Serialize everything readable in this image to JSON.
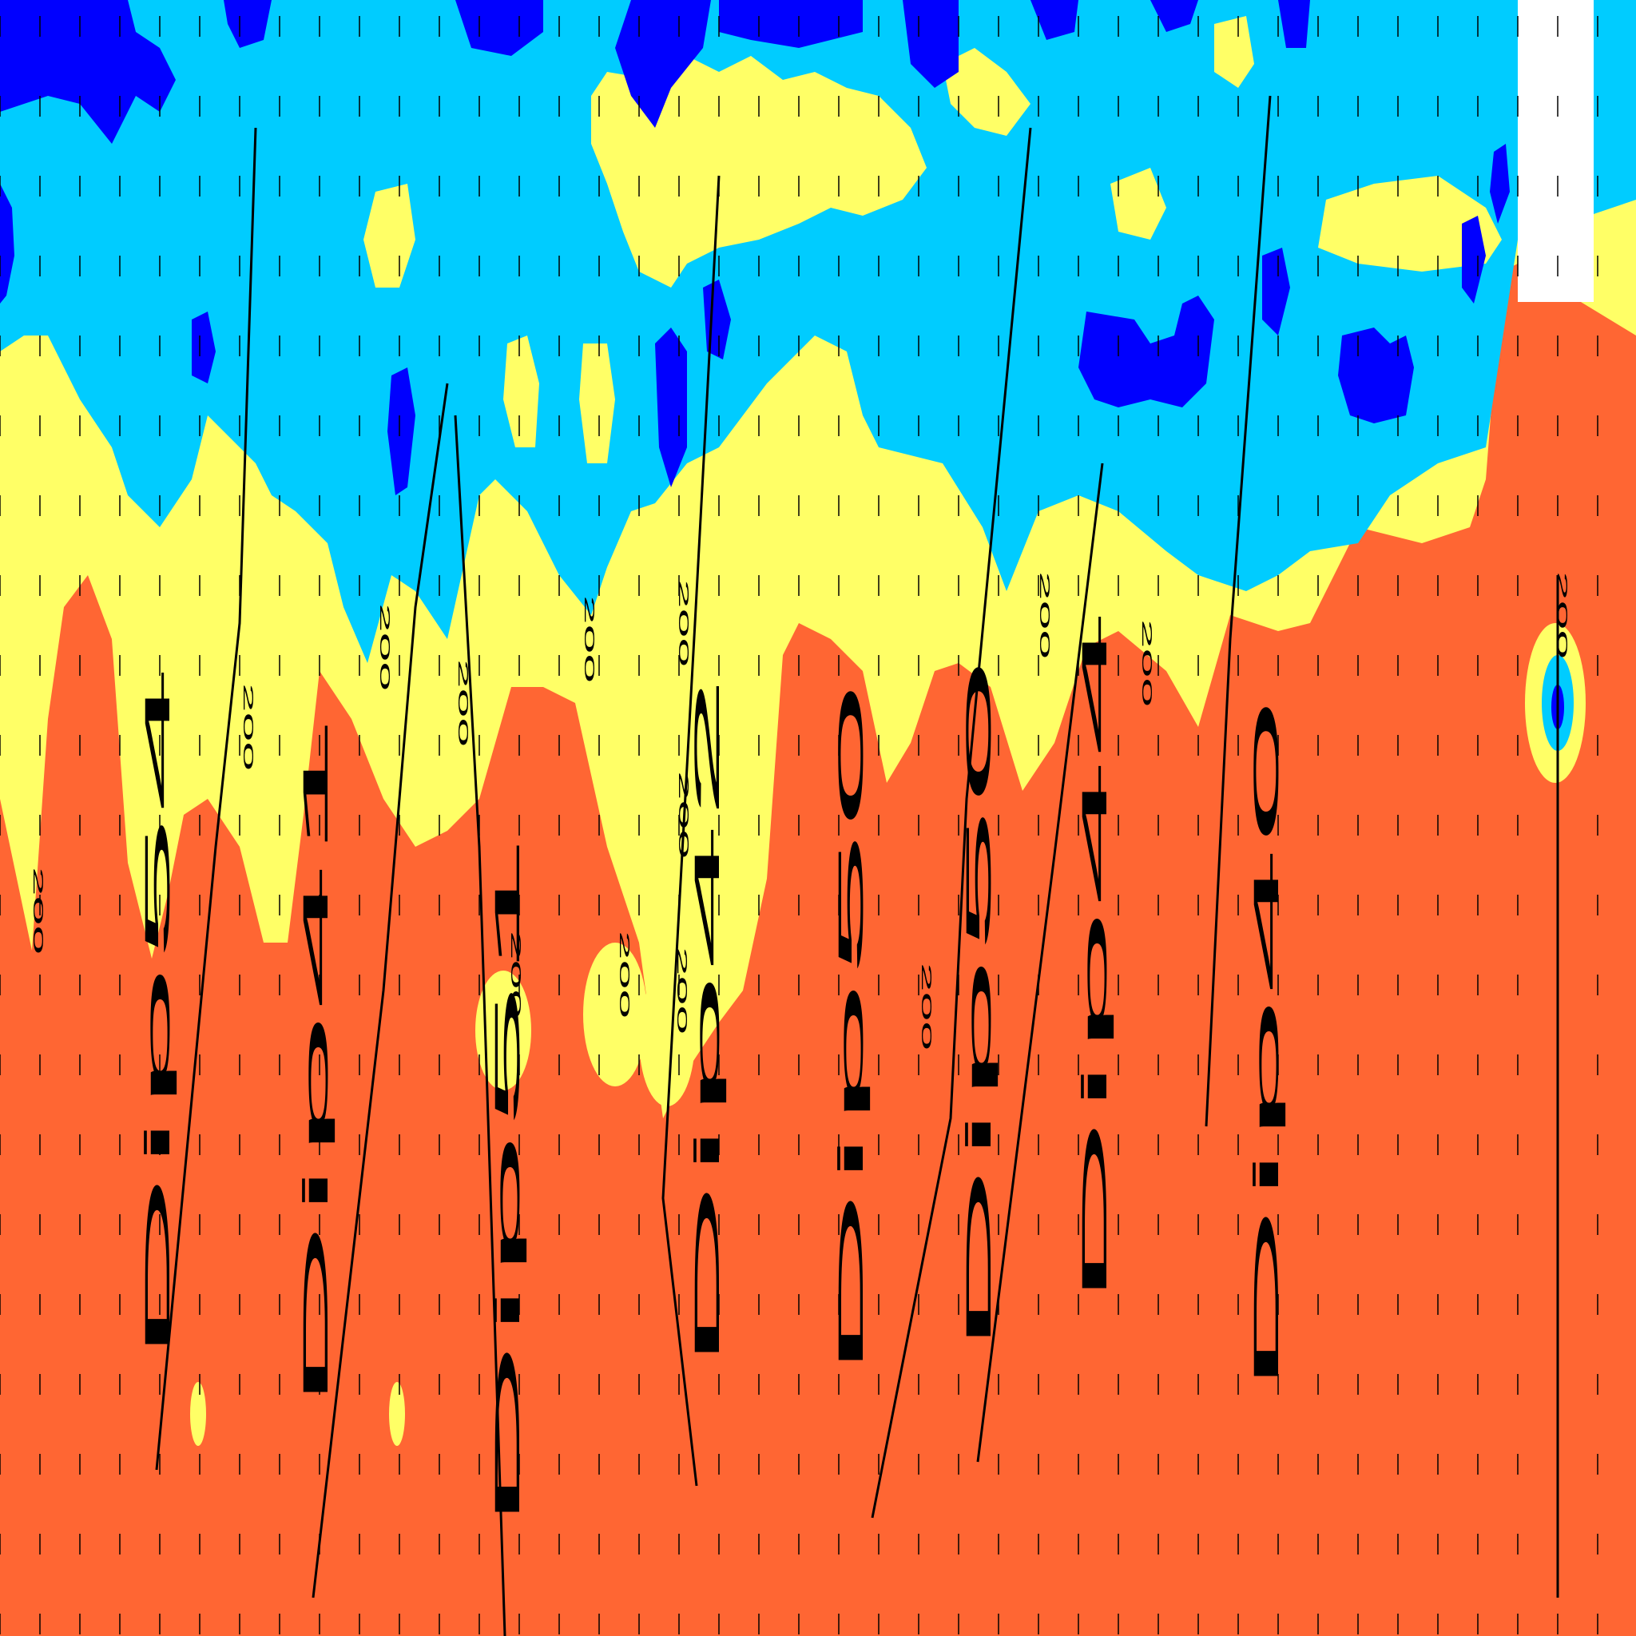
{
  "colors": {
    "deep_blue": "#0000ff",
    "light_blue": "#00ccff",
    "yellow": "#ffff66",
    "orange": "#ff6633",
    "white": "#ffffff",
    "line": "#000000"
  },
  "dip_labels": [
    "Dip54",
    "Dip41",
    "Dip51",
    "Dip42",
    "Dip50",
    "Dip50",
    "Dip44",
    "Dip40"
  ],
  "contour_labels": [
    "200",
    "200",
    "200",
    "200",
    "200",
    "200",
    "200",
    "200",
    "200",
    "200",
    "200",
    "200",
    "200",
    "200"
  ]
}
